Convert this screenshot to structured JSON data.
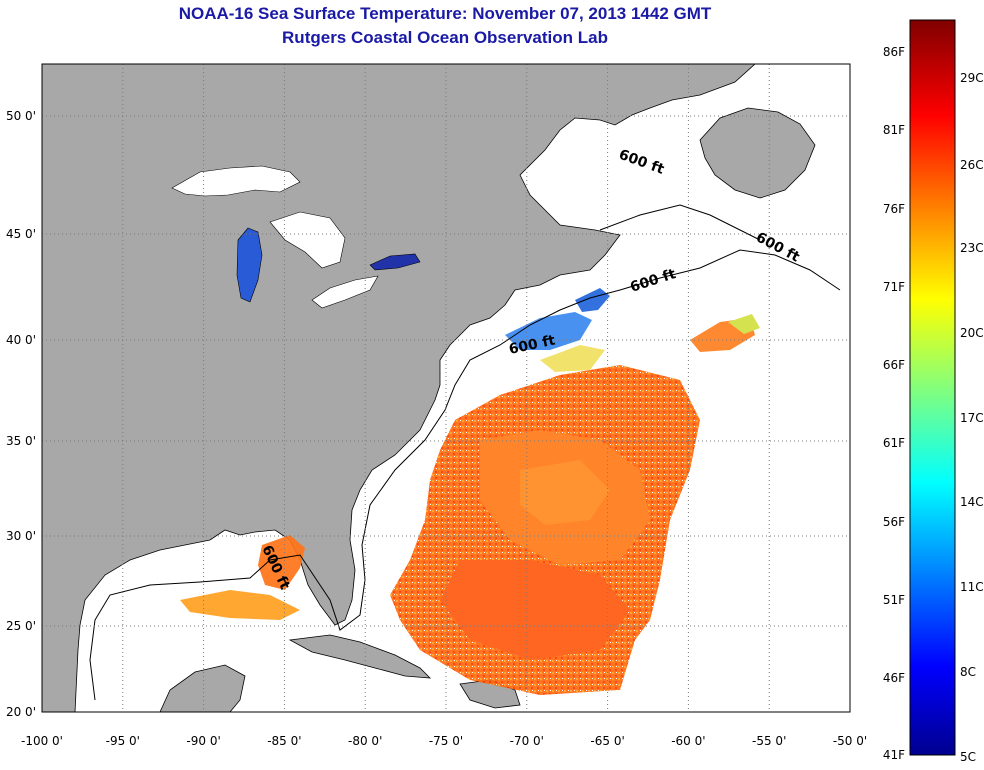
{
  "title": {
    "line1": "NOAA-16 Sea Surface Temperature:  November 07, 2013 1442 GMT",
    "line2": "Rutgers Coastal Ocean Observation Lab"
  },
  "map": {
    "x_ticks": [
      "-100 0'",
      "-95 0'",
      "-90 0'",
      "-85 0'",
      "-80 0'",
      "-75 0'",
      "-70 0'",
      "-65 0'",
      "-60 0'",
      "-55 0'",
      "-50 0'"
    ],
    "y_ticks": [
      "50 0'",
      "45 0'",
      "40 0'",
      "35 0'",
      "30 0'",
      "25 0'",
      "20 0'"
    ],
    "contour_labels": [
      "600 ft",
      "600 ft",
      "600 ft",
      "600 ft",
      "600 ft"
    ],
    "colors": {
      "land": "#a8a8a8",
      "ocean": "#ffffff",
      "grid": "#7a7a7a"
    }
  },
  "colorbar": {
    "fahrenheit_labels": [
      "86F",
      "81F",
      "76F",
      "71F",
      "66F",
      "61F",
      "56F",
      "51F",
      "46F",
      "41F"
    ],
    "celsius_labels": [
      "29C",
      "26C",
      "23C",
      "20C",
      "17C",
      "14C",
      "11C",
      "8C",
      "5C"
    ],
    "colormap": [
      "#00008f",
      "#0000ff",
      "#00ffff",
      "#ffff00",
      "#ff0000",
      "#800000"
    ]
  }
}
